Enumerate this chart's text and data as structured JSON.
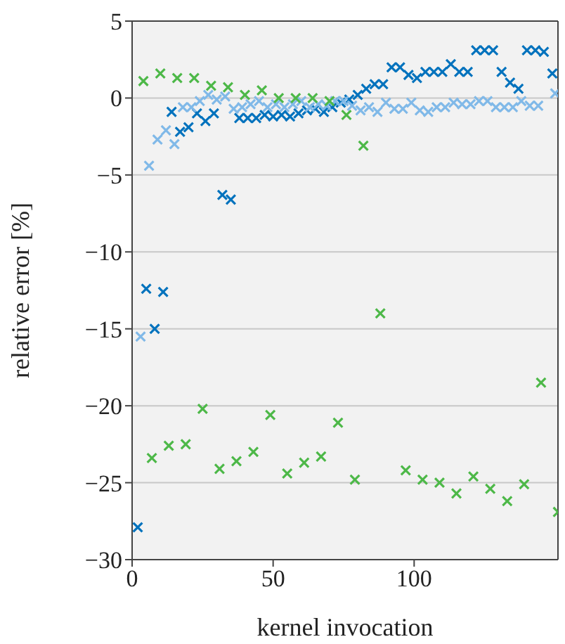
{
  "chart_data": {
    "type": "scatter",
    "xlabel": "kernel invocation",
    "ylabel": "relative error [%]",
    "xlim": [
      0,
      151
    ],
    "xticks": [
      0,
      50,
      100
    ],
    "ylim": [
      -30,
      5
    ],
    "yticks": [
      -30,
      -25,
      -20,
      -15,
      -10,
      -5,
      0,
      5
    ],
    "grid": "y",
    "marker": "cross",
    "legend": false,
    "series": [
      {
        "color": "#0072bd",
        "x": [
          2,
          5,
          8,
          11,
          14,
          17,
          20,
          23,
          26,
          29,
          32,
          35,
          38,
          41,
          44,
          47,
          50,
          53,
          56,
          59,
          62,
          65,
          68,
          71,
          74,
          77,
          80,
          83,
          86,
          89,
          92,
          95,
          98,
          101,
          104,
          107,
          110,
          113,
          116,
          119,
          122,
          125,
          128,
          131,
          134,
          137,
          140,
          143,
          146,
          149
        ],
        "values": [
          -27.9,
          -12.4,
          -15.0,
          -12.6,
          -0.9,
          -2.2,
          -1.9,
          -1.0,
          -1.5,
          -1.0,
          -6.3,
          -6.6,
          -1.3,
          -1.3,
          -1.3,
          -1.1,
          -1.2,
          -1.1,
          -1.2,
          -1.0,
          -0.8,
          -0.7,
          -0.9,
          -0.6,
          -0.3,
          -0.1,
          0.2,
          0.6,
          0.9,
          0.9,
          2.0,
          2.0,
          1.5,
          1.3,
          1.7,
          1.7,
          1.7,
          2.2,
          1.7,
          1.7,
          3.1,
          3.1,
          3.1,
          1.7,
          1.0,
          0.6,
          3.1,
          3.1,
          3.0,
          1.6
        ]
      },
      {
        "color": "#80b9e8",
        "x": [
          3,
          6,
          9,
          12,
          15,
          18,
          21,
          24,
          27,
          30,
          33,
          36,
          39,
          42,
          45,
          48,
          51,
          54,
          57,
          60,
          63,
          66,
          69,
          72,
          75,
          78,
          81,
          84,
          87,
          90,
          93,
          96,
          99,
          102,
          105,
          108,
          111,
          114,
          117,
          120,
          123,
          126,
          129,
          132,
          135,
          138,
          141,
          144,
          150
        ],
        "values": [
          -15.5,
          -4.4,
          -2.7,
          -2.1,
          -3.0,
          -0.6,
          -0.6,
          -0.2,
          0.2,
          -0.1,
          0.1,
          -0.7,
          -0.6,
          -0.4,
          -0.2,
          -0.6,
          -0.4,
          -0.6,
          -0.4,
          -0.2,
          -0.6,
          -0.4,
          -0.5,
          -0.2,
          -0.2,
          -0.5,
          -0.8,
          -0.6,
          -0.9,
          -0.3,
          -0.7,
          -0.7,
          -0.3,
          -0.8,
          -0.9,
          -0.6,
          -0.6,
          -0.3,
          -0.4,
          -0.4,
          -0.2,
          -0.2,
          -0.6,
          -0.6,
          -0.6,
          -0.2,
          -0.5,
          -0.5,
          0.3
        ]
      },
      {
        "color": "#4db848",
        "x": [
          4,
          7,
          10,
          13,
          16,
          19,
          22,
          25,
          28,
          31,
          34,
          37,
          40,
          43,
          46,
          49,
          52,
          55,
          58,
          61,
          64,
          67,
          70,
          73,
          76,
          79,
          82,
          88,
          97,
          103,
          109,
          115,
          121,
          127,
          133,
          139,
          145,
          151
        ],
        "values": [
          1.1,
          -23.4,
          1.6,
          -22.6,
          1.3,
          -22.5,
          1.3,
          -20.2,
          0.8,
          -24.1,
          0.7,
          -23.6,
          0.2,
          -23.0,
          0.5,
          -20.6,
          0.0,
          -24.4,
          0.0,
          -23.7,
          0.0,
          -23.3,
          -0.2,
          -21.1,
          -1.1,
          -24.8,
          -3.1,
          -14.0,
          -24.2,
          -24.8,
          -25.0,
          -25.7,
          -24.6,
          -25.4,
          -26.2,
          -25.1,
          -18.5,
          -26.9
        ]
      }
    ]
  }
}
